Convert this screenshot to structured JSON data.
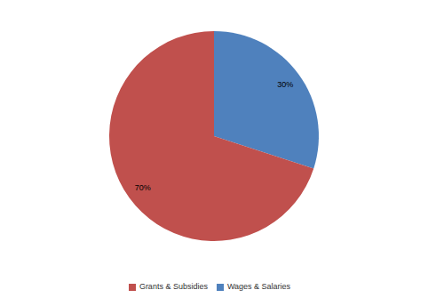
{
  "chart_data": {
    "type": "pie",
    "categories": [
      "Wages & Salaries",
      "Grants & Subsidies"
    ],
    "values": [
      30,
      70
    ],
    "value_labels": [
      "30%",
      "70%"
    ],
    "colors": [
      "#4f81bd",
      "#c0504d"
    ],
    "data_labels": true,
    "legend": "bottom"
  }
}
